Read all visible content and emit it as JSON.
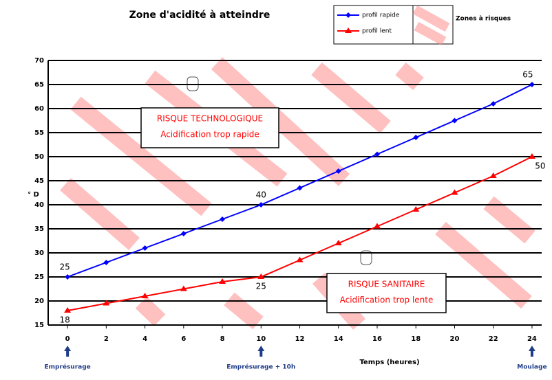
{
  "chart_data": {
    "type": "line",
    "title": "Zone d'acidité à atteindre",
    "x_label": "Temps (heures)",
    "y_label": "° D",
    "x": [
      0,
      2,
      4,
      6,
      8,
      10,
      12,
      14,
      16,
      18,
      20,
      22,
      24
    ],
    "series": [
      {
        "name": "profil rapide",
        "color": "#0000ff",
        "marker": "diamond",
        "values": [
          25,
          28,
          31,
          34,
          37,
          40,
          43.5,
          47,
          50.5,
          54,
          57.5,
          61,
          65
        ]
      },
      {
        "name": "profil lent",
        "color": "#ff0000",
        "marker": "triangle",
        "values": [
          18,
          19.5,
          21,
          22.5,
          24,
          25,
          28.5,
          32,
          35.5,
          39,
          42.5,
          46,
          50
        ]
      }
    ],
    "xlim": [
      -1,
      24.5
    ],
    "xticks": [
      0,
      2,
      4,
      6,
      8,
      10,
      12,
      14,
      16,
      18,
      20,
      22,
      24
    ],
    "ylim": [
      15,
      70
    ],
    "yticks": [
      15,
      20,
      25,
      30,
      35,
      40,
      45,
      50,
      55,
      60,
      65,
      70
    ],
    "grid": true,
    "risk_zone_label": "Zones à risques",
    "zones": [
      {
        "title": "RISQUE TECHNOLOGIQUE",
        "subtitle": "Acidification trop rapide"
      },
      {
        "title": "RISQUE SANITAIRE",
        "subtitle": "Acidification trop lente"
      }
    ],
    "events": [
      {
        "x": 0,
        "label": "Emprésurage"
      },
      {
        "x": 10,
        "label": "Emprésurage + 10h"
      },
      {
        "x": 24,
        "label": "Moulage"
      }
    ]
  }
}
